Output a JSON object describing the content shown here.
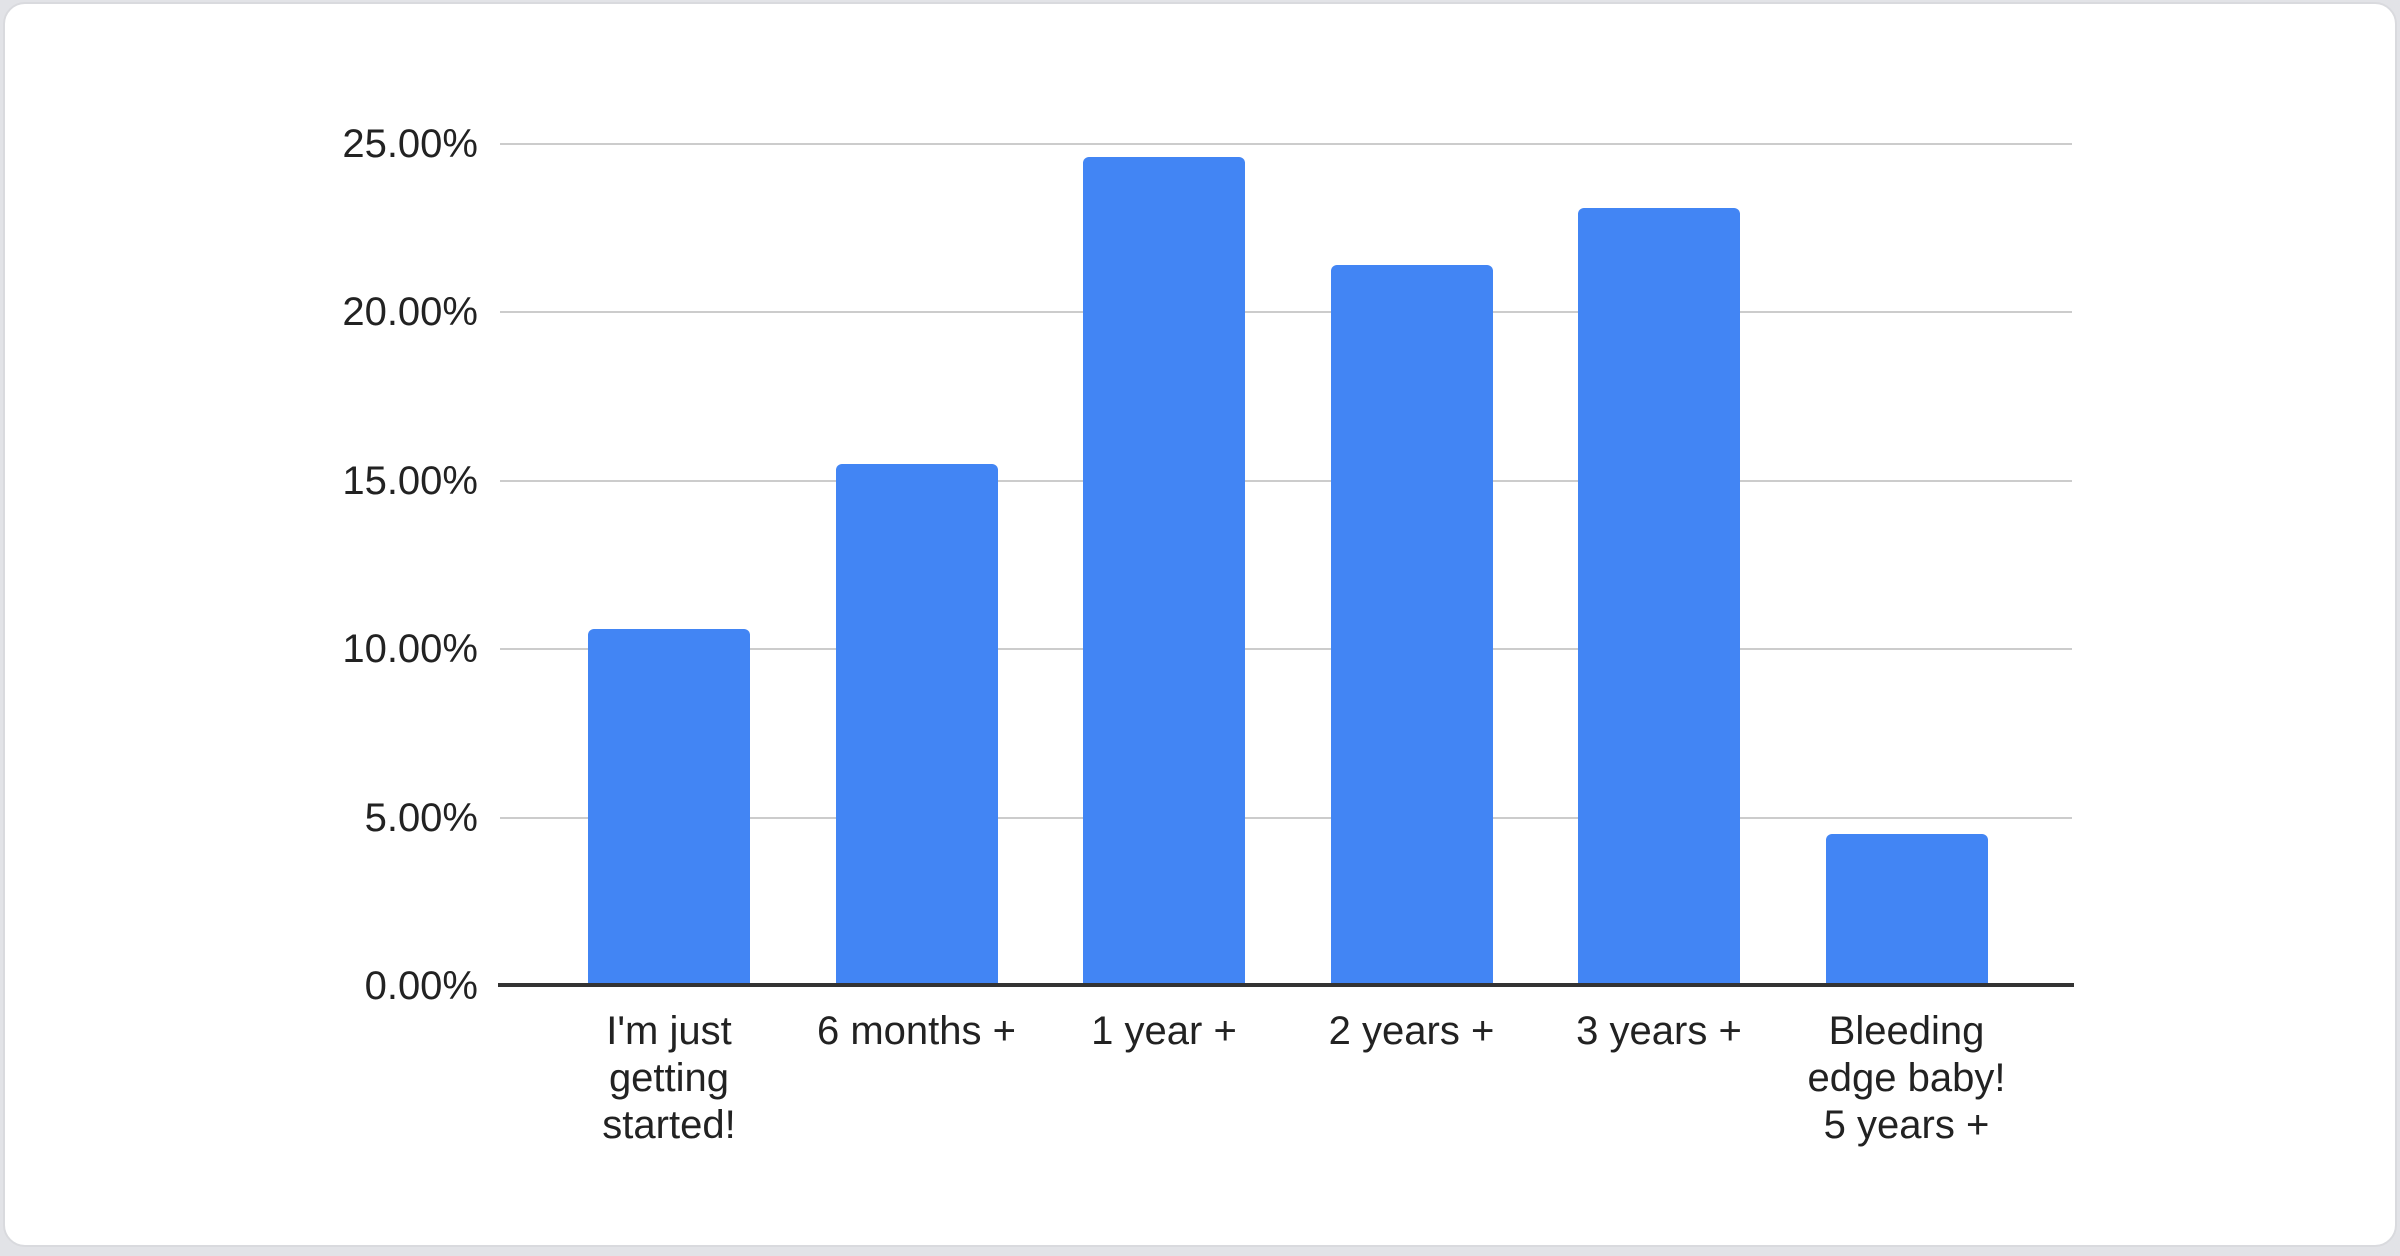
{
  "chart_data": {
    "type": "bar",
    "title": "",
    "xlabel": "",
    "ylabel": "",
    "categories": [
      "I'm just getting started!",
      "6 months +",
      "1 year +",
      "2 years +",
      "3 years +",
      "Bleeding edge baby! 5 years +"
    ],
    "category_lines": [
      [
        "I'm just",
        "getting",
        "started!"
      ],
      [
        "6 months +"
      ],
      [
        "1 year +"
      ],
      [
        "2 years +"
      ],
      [
        "3 years +"
      ],
      [
        "Bleeding",
        "edge baby!",
        "5 years +"
      ]
    ],
    "values": [
      10.6,
      15.5,
      24.6,
      21.4,
      23.1,
      4.5
    ],
    "value_unit": "%",
    "ylim": [
      0,
      25
    ],
    "yticks": [
      {
        "value": 0,
        "label": "0.00%"
      },
      {
        "value": 5,
        "label": "5.00%"
      },
      {
        "value": 10,
        "label": "10.00%"
      },
      {
        "value": 15,
        "label": "15.00%"
      },
      {
        "value": 20,
        "label": "20.00%"
      },
      {
        "value": 25,
        "label": "25.00%"
      }
    ],
    "grid": true,
    "legend": "none",
    "colors": {
      "bar": "#4285F4",
      "gridline": "#cccccc",
      "baseline": "#333333",
      "tick_text": "#222222",
      "card_background": "#ffffff",
      "page_edge": "#e2e3e7"
    }
  }
}
